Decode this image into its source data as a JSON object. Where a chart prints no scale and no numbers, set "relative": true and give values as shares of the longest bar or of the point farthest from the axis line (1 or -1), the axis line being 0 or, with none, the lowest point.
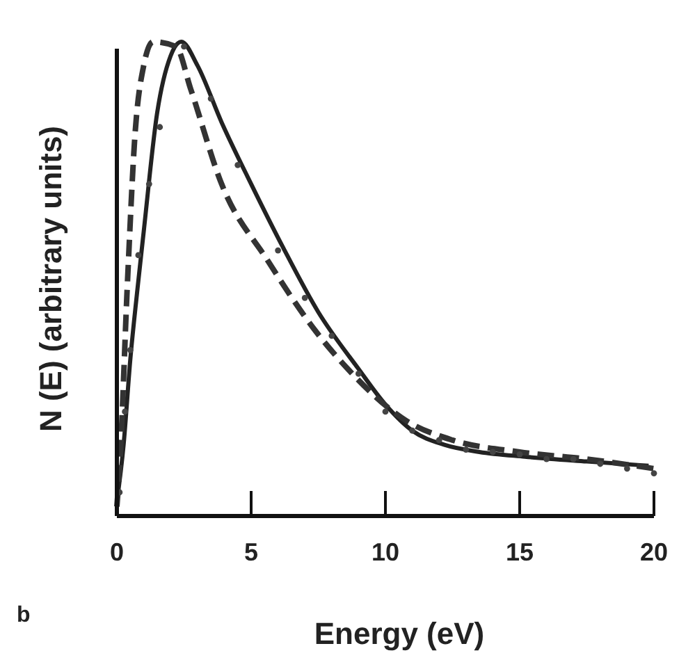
{
  "chart_data": {
    "type": "line",
    "xlabel": "Energy (eV)",
    "ylabel": "N (E) (arbitrary units)",
    "relative": true,
    "xlim": [
      0,
      20
    ],
    "xticks": [
      0,
      5,
      10,
      15,
      20
    ],
    "grid": false,
    "annotations": [
      "b"
    ],
    "series": [
      {
        "line_style": "solid",
        "color": "#222222",
        "x": [
          0,
          0.25,
          0.5,
          0.75,
          1,
          1.5,
          2,
          2.4,
          3,
          3.9,
          5,
          6.2,
          7.5,
          9,
          10,
          11,
          12.2,
          13.5,
          15.2,
          17.5,
          19.8
        ],
        "values": [
          0.03,
          0.15,
          0.33,
          0.47,
          0.6,
          0.85,
          0.97,
          1.0,
          0.95,
          0.83,
          0.7,
          0.565,
          0.43,
          0.31,
          0.235,
          0.18,
          0.15,
          0.135,
          0.125,
          0.115,
          0.106
        ]
      },
      {
        "line_style": "dashed",
        "color": "#333333",
        "x": [
          0,
          0.1,
          0.4,
          0.67,
          1,
          1.35,
          2.2,
          2.75,
          3.9,
          5.6,
          7.4,
          8.6,
          10.8,
          12.5,
          15,
          17.5,
          20
        ],
        "values": [
          0.02,
          0.1,
          0.5,
          0.8,
          0.95,
          1.0,
          0.99,
          0.9,
          0.7,
          0.54,
          0.39,
          0.31,
          0.2,
          0.16,
          0.135,
          0.12,
          0.1
        ]
      },
      {
        "type": "scatter",
        "marker": "circle",
        "color": "#444444",
        "x": [
          0.1,
          0.3,
          0.5,
          0.8,
          1.2,
          1.6,
          2.5,
          3.5,
          4.5,
          6,
          7,
          8,
          9,
          10,
          11,
          12,
          13,
          14,
          15,
          16,
          17,
          18,
          19,
          20
        ],
        "values": [
          0.05,
          0.22,
          0.35,
          0.55,
          0.7,
          0.82,
          0.99,
          0.88,
          0.74,
          0.56,
          0.46,
          0.38,
          0.3,
          0.22,
          0.18,
          0.16,
          0.14,
          0.135,
          0.13,
          0.12,
          0.12,
          0.11,
          0.1,
          0.09
        ]
      }
    ]
  }
}
